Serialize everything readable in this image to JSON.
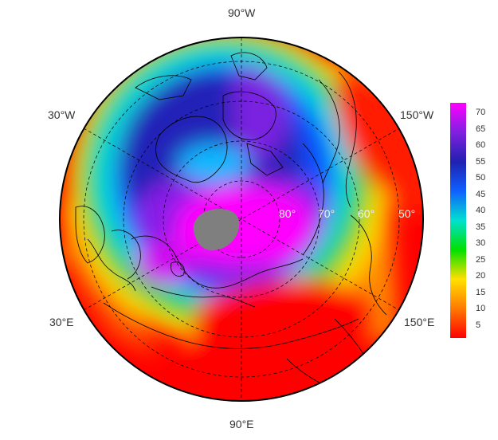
{
  "map": {
    "projection": "polar-stereographic-north",
    "longitude_labels": {
      "top": "90°W",
      "upper_left": "30°W",
      "upper_right": "150°W",
      "lower_left": "30°E",
      "lower_right": "150°E",
      "bottom": "90°E"
    },
    "latitude_labels": [
      "80°",
      "70°",
      "60°",
      "50°"
    ],
    "no_data_color": "#7f7f7f",
    "coastline_color": "#000000",
    "graticule_color": "#000000"
  },
  "colorbar": {
    "min": 1,
    "max": 73,
    "ticks": [
      "70",
      "65",
      "60",
      "55",
      "50",
      "45",
      "40",
      "35",
      "30",
      "25",
      "20",
      "15",
      "10",
      "5"
    ],
    "tick_values": [
      70,
      65,
      60,
      55,
      50,
      45,
      40,
      35,
      30,
      25,
      20,
      15,
      10,
      5
    ],
    "colors": [
      "#ff0000",
      "#ff7a00",
      "#ffe000",
      "#00e000",
      "#00e0d0",
      "#1060ff",
      "#2020b0",
      "#8020e0",
      "#ff00ff"
    ]
  }
}
